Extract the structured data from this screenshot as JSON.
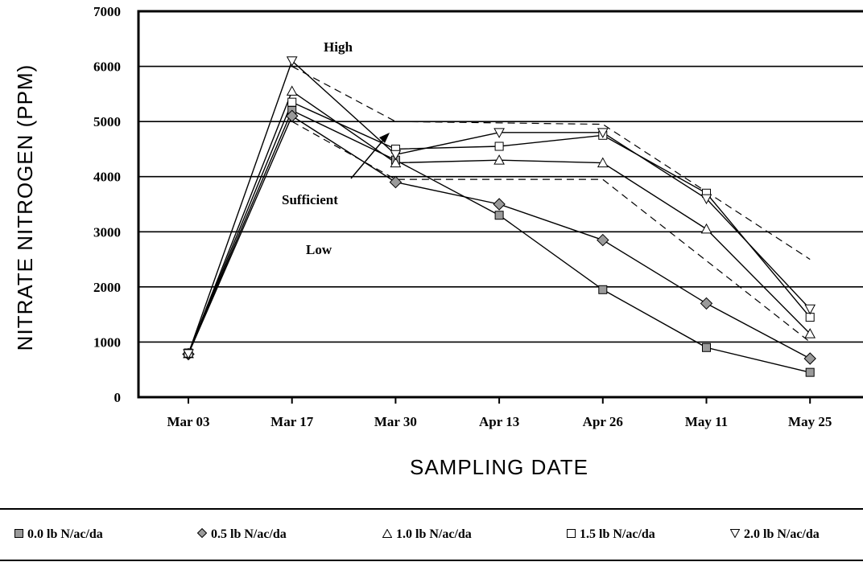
{
  "chart_data": {
    "type": "line",
    "title": "",
    "xlabel": "Sampling Date",
    "ylabel": "Nitrate Nitrogen (ppm)",
    "categories": [
      "Mar 03",
      "Mar 17",
      "Mar 30",
      "Apr 13",
      "Apr 26",
      "May 11",
      "May 25"
    ],
    "yticks": [
      "0",
      "1000",
      "2000",
      "3000",
      "4000",
      "5000",
      "6000",
      "7000"
    ],
    "ylim": [
      0,
      7000
    ],
    "grid": true,
    "legend": "bottom",
    "series": [
      {
        "name": "0.0 lb N/ac/da",
        "marker": "square-gray",
        "values": [
          800,
          5200,
          4300,
          3300,
          1950,
          900,
          450
        ]
      },
      {
        "name": "0.5 lb N/ac/da",
        "marker": "diamond-gray",
        "values": [
          780,
          5100,
          3900,
          3500,
          2850,
          1700,
          700
        ]
      },
      {
        "name": "1.0 lb N/ac/da",
        "marker": "triangle-up",
        "values": [
          790,
          5550,
          4250,
          4300,
          4250,
          3050,
          1150
        ]
      },
      {
        "name": "1.5 lb N/ac/da",
        "marker": "square-open",
        "values": [
          800,
          5350,
          4500,
          4550,
          4750,
          3700,
          1450
        ]
      },
      {
        "name": "2.0 lb N/ac/da",
        "marker": "triangle-down",
        "values": [
          790,
          6100,
          4400,
          4800,
          4800,
          3600,
          1600
        ]
      }
    ],
    "reference_lines": [
      {
        "label": "upper",
        "x": [
          "Mar 17",
          "Mar 30",
          "Apr 26",
          "May 25"
        ],
        "values": [
          6000,
          5000,
          4950,
          2500
        ]
      },
      {
        "label": "lower",
        "x": [
          "Mar 17",
          "Mar 30",
          "Apr 26",
          "May 25"
        ],
        "values": [
          5000,
          3950,
          3950,
          1000
        ]
      }
    ],
    "annotations": {
      "high": "High",
      "sufficient": "Sufficient",
      "low": "Low"
    }
  }
}
